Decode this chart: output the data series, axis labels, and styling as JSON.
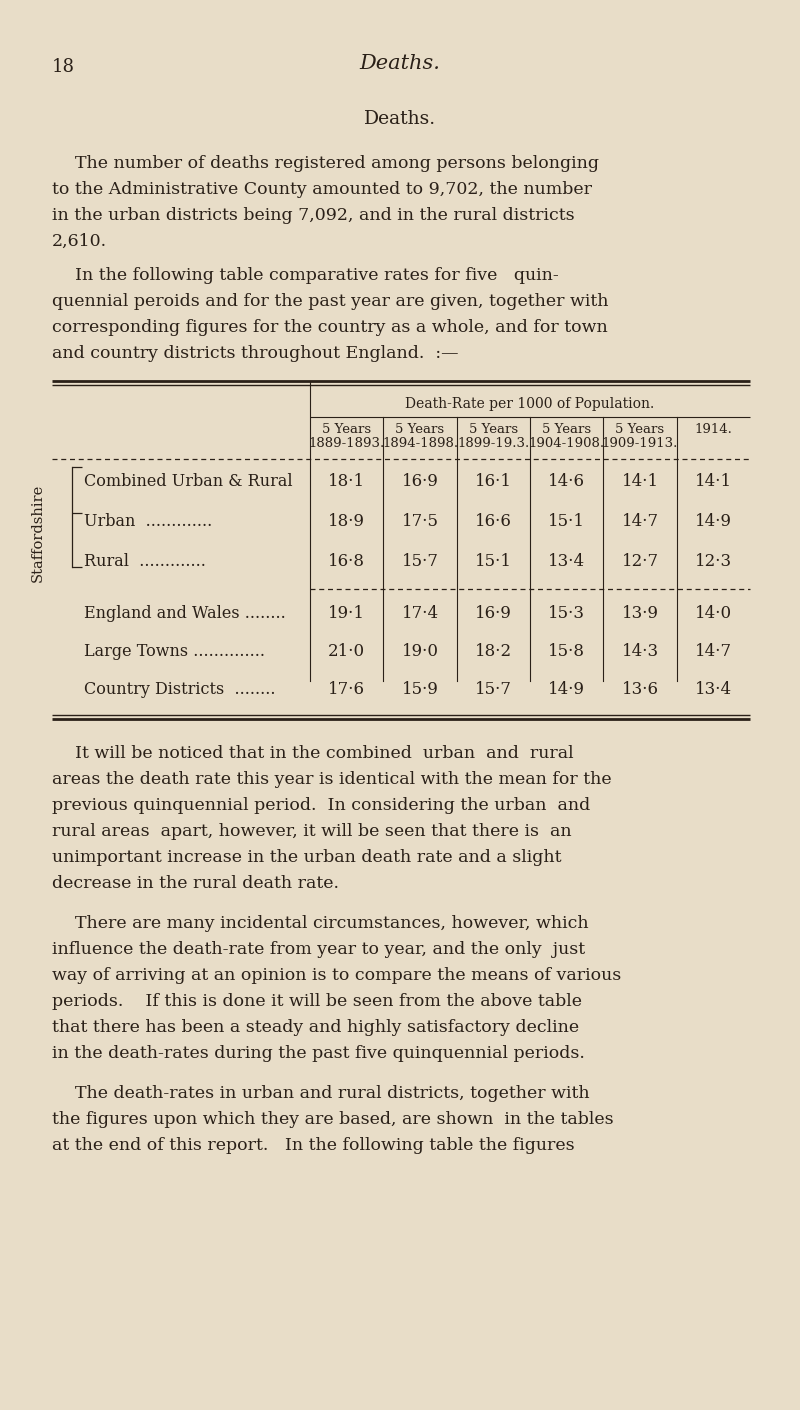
{
  "bg_color": "#e8ddc8",
  "text_color": "#2a2018",
  "page_number": "18",
  "page_header": "Deaths.",
  "section_title": "Deaths.",
  "para1_lines": [
    "The number of deaths registered among persons belonging",
    "to the Administrative County amounted to 9,702, the number",
    "in the urban districts being 7,092, and in the rural districts",
    "2,610."
  ],
  "para2_lines": [
    "In the following table comparative rates for five   quin-",
    "quennial peroids and for the past year are given, together with",
    "corresponding figures for the country as a whole, and for town",
    "and country districts throughout England.  :—"
  ],
  "table_header_span": "Death-Rate per 1000 of Population.",
  "col_headers_line1": [
    "5 Years",
    "5 Years",
    "5 Years",
    "5 Years",
    "5 Years",
    "1914."
  ],
  "col_headers_line2": [
    "1889-1893.",
    "1894-1898.",
    "1899-19.3.",
    "1904-1908.",
    "1909-1913.",
    ""
  ],
  "row_label_group": "Staffordshire",
  "staffy_rows": [
    {
      "label": "Combined Urban & Rural",
      "dots": "",
      "values": [
        "18·1",
        "16·9",
        "16·1",
        "14·6",
        "14·1",
        "14·1"
      ]
    },
    {
      "label": "Urban",
      "dots": "  .............",
      "values": [
        "18·9",
        "17·5",
        "16·6",
        "15·1",
        "14·7",
        "14·9"
      ]
    },
    {
      "label": "Rural",
      "dots": "  .............",
      "values": [
        "16·8",
        "15·7",
        "15·1",
        "13·4",
        "12·7",
        "12·3"
      ]
    }
  ],
  "extra_rows": [
    {
      "label": "England and Wales",
      "dots": " ........",
      "values": [
        "19·1",
        "17·4",
        "16·9",
        "15·3",
        "13·9",
        "14·0"
      ]
    },
    {
      "label": "Large Towns",
      "dots": " ..............",
      "values": [
        "21·0",
        "19·0",
        "18·2",
        "15·8",
        "14·3",
        "14·7"
      ]
    },
    {
      "label": "Country Districts",
      "dots": "  ........",
      "values": [
        "17·6",
        "15·9",
        "15·7",
        "14·9",
        "13·6",
        "13·4"
      ]
    }
  ],
  "para3_lines": [
    "It will be noticed that in the combined  urban  and  rural",
    "areas the death rate this year is identical with the mean for the",
    "previous quinquennial period.  In considering the urban  and",
    "rural areas  apart, however, it will be seen that there is  an",
    "unimportant increase in the urban death rate and a slight",
    "decrease in the rural death rate."
  ],
  "para4_lines": [
    "There are many incidental circumstances, however, which",
    "influence the death-rate from year to year, and the only  just",
    "way of arriving at an opinion is to compare the means of various",
    "periods.    If this is done it will be seen from the above table",
    "that there has been a steady and highly satisfactory decline",
    "in the death-rates during the past five quinquennial periods."
  ],
  "para5_lines": [
    "The death-rates in urban and rural districts, together with",
    "the figures upon which they are based, are shown  in the tables",
    "at the end of this report.   In the following table the figures"
  ]
}
